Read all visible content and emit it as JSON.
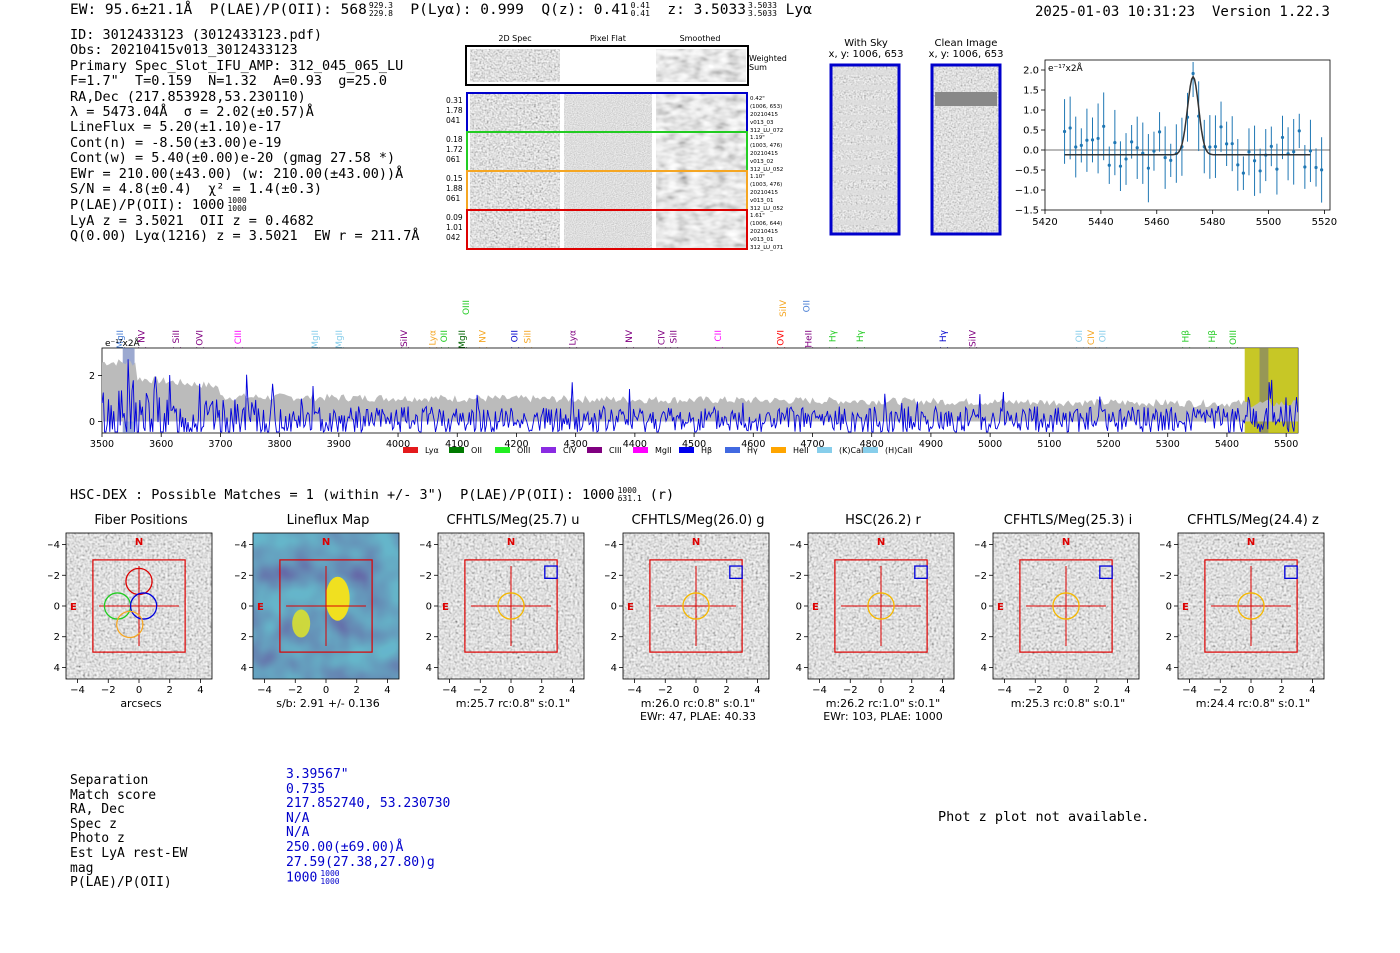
{
  "header": {
    "ew": "EW: 95.6±21.1Å",
    "plae_label": "P(LAE)/P(OII): 568",
    "plae_hi": "929.3",
    "plae_lo": "229.8",
    "plya": "P(Lyα): 0.999",
    "qz_label": "Q(z): 0.41",
    "qz_hi": "0.41",
    "qz_lo": "0.41",
    "z_label": "z: 3.5033",
    "z_hi": "3.5033",
    "z_lo": "3.5033",
    "z_line": "Lyα",
    "datetime": "2025-01-03 10:31:23",
    "version": "Version 1.22.3"
  },
  "info": {
    "lines": [
      "ID: 3012433123 (3012433123.pdf)",
      "Obs: 20210415v013_3012433123",
      "Primary Spec_Slot_IFU_AMP: 312_045_065_LU",
      "F=1.7\"  T=0.159  N=1.32  A=0.93  g=25.0",
      "RA,Dec (217.853928,53.230110)",
      "λ = 5473.04Å  σ = 2.02(±0.57)Å",
      "LineFlux = 5.20(±1.10)e-17",
      "Cont(n) = -8.50(±3.00)e-19",
      "Cont(w) = 5.40(±0.00)e-20 (gmag 27.58 *)",
      "EWr = 210.00(±43.00) (w: 210.00(±43.00))Å",
      "S/N = 4.8(±0.4)  χ² = 1.4(±0.3)"
    ],
    "plae_line": "P(LAE)/P(OII): 1000",
    "plae_hi": "1000",
    "plae_lo": "1000",
    "lya_line": "LyA z = 3.5021  OII z = 0.4682",
    "q_line": "Q(0.00) Lyα(1216) z = 3.5021  EW r = 211.7Å"
  },
  "spec2d": {
    "col_labels": [
      "2D Spec",
      "Pixel Flat",
      "Smoothed"
    ],
    "weighted_sum": "Weighted Sum",
    "rows": [
      {
        "left": [
          "0.31",
          "1.78",
          "041"
        ],
        "right": [
          "0.42\"",
          "(1006, 653)",
          "20210415",
          "v013_03",
          "312_LU_072"
        ],
        "color": "#0000cc"
      },
      {
        "left": [
          "0.18",
          "1.72",
          "061"
        ],
        "right": [
          "1.19\"",
          "(1003, 476)",
          "20210415",
          "v013_02",
          "312_LU_052"
        ],
        "color": "#22cc22"
      },
      {
        "left": [
          "0.15",
          "1.88",
          "061"
        ],
        "right": [
          "1.10\"",
          "(1003, 476)",
          "20210415",
          "v013_01",
          "312_LU_052"
        ],
        "color": "#f5a623"
      },
      {
        "left": [
          "0.09",
          "1.01",
          "042"
        ],
        "right": [
          "1.61\"",
          "(1006, 644)",
          "20210415",
          "v013_01",
          "312_LU_071"
        ],
        "color": "#dd0000"
      }
    ]
  },
  "sky": {
    "with_sky_title": "With Sky",
    "with_sky_xy": "x, y: 1006, 653",
    "clean_title": "Clean Image",
    "clean_xy": "x, y: 1006, 653"
  },
  "zoom_chart": {
    "unit": "e⁻¹⁷x2Å",
    "x_ticks": [
      "5420",
      "5440",
      "5460",
      "5480",
      "5500",
      "5520"
    ],
    "y_ticks": [
      "2.0",
      "1.5",
      "1.0",
      "0.5",
      "0.0",
      "−0.5",
      "−1.0",
      "−1.5"
    ]
  },
  "chart_data": {
    "type": "line",
    "unit": "e⁻¹⁷x2Å",
    "xlim": [
      3500,
      5520
    ],
    "ylim": [
      -0.5,
      3.2
    ],
    "x_ticks": [
      3500,
      3600,
      3700,
      3800,
      3900,
      4000,
      4100,
      4200,
      4300,
      4400,
      4500,
      4600,
      4700,
      4800,
      4900,
      5000,
      5100,
      5200,
      5300,
      5400,
      5500
    ],
    "y_ticks": [
      0,
      2
    ],
    "series": [
      {
        "color": "#0000dd",
        "note": "flux"
      },
      {
        "color": "#bbbbbb",
        "note": "error envelope"
      }
    ],
    "highlight_range": [
      5430,
      5520
    ],
    "line_marks": [
      {
        "label": "MgII",
        "x": 3530,
        "color": "#4a7fd4"
      },
      {
        "label": "NV",
        "x": 3567,
        "color": "#800080"
      },
      {
        "label": "SiII",
        "x": 3625,
        "color": "#800080"
      },
      {
        "label": "OVI",
        "x": 3665,
        "color": "#800080"
      },
      {
        "label": "CIII",
        "x": 3730,
        "color": "#ff00ff"
      },
      {
        "label": "MgII",
        "x": 3860,
        "color": "#87ceeb"
      },
      {
        "label": "MgII",
        "x": 3900,
        "color": "#87ceeb"
      },
      {
        "label": "SiIV",
        "x": 4010,
        "color": "#800080"
      },
      {
        "label": "Lyα",
        "x": 4058,
        "color": "#f5a623"
      },
      {
        "label": "OII",
        "x": 4078,
        "color": "#22cc22"
      },
      {
        "label": "MgII",
        "x": 4108,
        "color": "#006400"
      },
      {
        "label": "NV",
        "x": 4143,
        "color": "#f5a623"
      },
      {
        "label": "OII",
        "x": 4197,
        "color": "#0000cc"
      },
      {
        "label": "SiII",
        "x": 4219,
        "color": "#f5a623"
      },
      {
        "label": "Lyα",
        "x": 4295,
        "color": "#800080"
      },
      {
        "label": "NV",
        "x": 4390,
        "color": "#800080"
      },
      {
        "label": "CIV",
        "x": 4445,
        "color": "#800080"
      },
      {
        "label": "SiII",
        "x": 4465,
        "color": "#800080"
      },
      {
        "label": "CII",
        "x": 4540,
        "color": "#ff00ff"
      },
      {
        "label": "OVI",
        "x": 4646,
        "color": "#ff0000"
      },
      {
        "label": "HeII",
        "x": 4693,
        "color": "#800080"
      },
      {
        "label": "Hγ",
        "x": 4734,
        "color": "#22cc22"
      },
      {
        "label": "Hγ",
        "x": 4780,
        "color": "#22cc22"
      },
      {
        "label": "Hγ",
        "x": 4920,
        "color": "#0000cc"
      },
      {
        "label": "SiIV",
        "x": 4970,
        "color": "#800080"
      },
      {
        "label": "OII",
        "x": 5150,
        "color": "#87ceeb"
      },
      {
        "label": "CIV",
        "x": 5170,
        "color": "#f5a623"
      },
      {
        "label": "OII",
        "x": 5190,
        "color": "#87ceeb"
      },
      {
        "label": "Hβ",
        "x": 5330,
        "color": "#22cc22"
      },
      {
        "label": "Hβ",
        "x": 5375,
        "color": "#22cc22"
      },
      {
        "label": "OIII",
        "x": 5410,
        "color": "#22cc22"
      },
      {
        "label": "OIII",
        "x": 4115,
        "color": "#22cc22",
        "upper": true
      },
      {
        "label": "SiIV",
        "x": 4650,
        "color": "#f5a623",
        "upper": true
      },
      {
        "label": "OII",
        "x": 4690,
        "color": "#4a7fd4",
        "upper": true
      }
    ]
  },
  "legend": [
    {
      "label": "Lyα",
      "color": "#e41a1c"
    },
    {
      "label": "OII",
      "color": "#007a00"
    },
    {
      "label": "OIII",
      "color": "#22ee22"
    },
    {
      "label": "CIV",
      "color": "#8a2be2"
    },
    {
      "label": "CIII",
      "color": "#800080"
    },
    {
      "label": "MgII",
      "color": "#ff00ff"
    },
    {
      "label": "Hβ",
      "color": "#0000ee"
    },
    {
      "label": "Hγ",
      "color": "#4169e1"
    },
    {
      "label": "HeII",
      "color": "#ffa500"
    },
    {
      "label": "(K)CaII",
      "color": "#87ceeb"
    },
    {
      "label": "(H)CaII",
      "color": "#87ceeb"
    }
  ],
  "match_line": {
    "text": "HSC-DEX : Possible Matches = 1 (within +/- 3\")  P(LAE)/P(OII): 1000",
    "hi": "1000",
    "lo": "631.1",
    "tail": "(r)"
  },
  "cutouts": [
    {
      "title": "Fiber Positions",
      "cap1": "arcsecs",
      "cap2": "",
      "type": "fiber"
    },
    {
      "title": "Lineflux Map",
      "cap1": "s/b: 2.91 +/- 0.136",
      "cap2": "",
      "type": "flux"
    },
    {
      "title": "CFHTLS/Meg(25.7) u",
      "cap1": "m:25.7 rc:0.8\"  s:0.1\"",
      "cap2": "",
      "type": "img"
    },
    {
      "title": "CFHTLS/Meg(26.0) g",
      "cap1": "m:26.0 rc:0.8\"  s:0.1\"",
      "cap2": "EWr: 47, PLAE: 40.33",
      "type": "img"
    },
    {
      "title": "HSC(26.2) r",
      "cap1": "m:26.2 rc:1.0\"  s:0.1\"",
      "cap2": "EWr: 103, PLAE: 1000",
      "type": "img"
    },
    {
      "title": "CFHTLS/Meg(25.3) i",
      "cap1": "m:25.3 rc:0.8\"  s:0.1\"",
      "cap2": "",
      "type": "img"
    },
    {
      "title": "CFHTLS/Meg(24.4) z",
      "cap1": "m:24.4 rc:0.8\"  s:0.1\"",
      "cap2": "",
      "type": "img"
    }
  ],
  "cutout_axes": {
    "ticks": [
      "−4",
      "−2",
      "0",
      "2",
      "4"
    ],
    "n_label": "N",
    "e_label": "E"
  },
  "bottom": {
    "keys": [
      "Separation",
      "Match score",
      "RA, Dec",
      "Spec z",
      "Photo z",
      "Est LyA rest-EW",
      "mag",
      "P(LAE)/P(OII)"
    ],
    "vals": [
      "3.39567\"",
      "0.735",
      "217.852740, 53.230730",
      "N/A",
      "N/A",
      "250.00(±69.00)Å",
      "27.59(27.38,27.80)g",
      "1000"
    ],
    "plae_hi": "1000",
    "plae_lo": "1000",
    "photz_msg": "Phot z plot not available."
  }
}
